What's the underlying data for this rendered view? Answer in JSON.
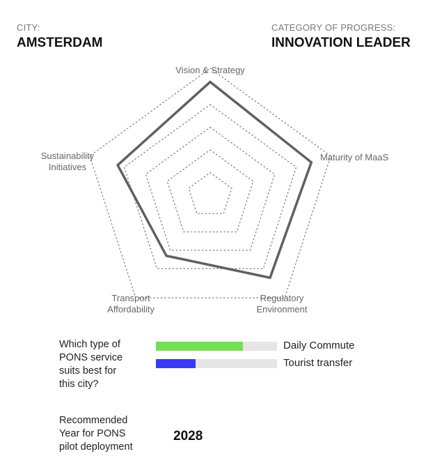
{
  "header": {
    "city_label": "CITY:",
    "city_value": "AMSTERDAM",
    "category_label": "CATEGORY OF PROGRESS:",
    "category_value": "INNOVATION LEADER"
  },
  "chart_data": {
    "type": "radar",
    "axes": [
      "Vision & Strategy",
      "Maturity of MaaS",
      "Regulatory Environment",
      "Transport Affordability",
      "Sustainability Initiatives"
    ],
    "axis_label_lines": [
      [
        "Vision & Strategy"
      ],
      [
        "Maturity of MaaS"
      ],
      [
        "Regulatory",
        "Environment"
      ],
      [
        "Transport",
        "Affordability"
      ],
      [
        "Sustainability",
        "Initiatives"
      ]
    ],
    "values": [
      5,
      4.7,
      4.5,
      3.3,
      4.3
    ],
    "scale_max": 5.6,
    "grid_levels": [
      1,
      2,
      3,
      4,
      5.6
    ],
    "series_color": "#606060",
    "grid_color": "#888888"
  },
  "service_fit": {
    "question": [
      "Which type of",
      "PONS service",
      "suits best for",
      "this city?"
    ],
    "bars": [
      {
        "label": "Daily Commute",
        "value": 0.72,
        "color": "#76dd55"
      },
      {
        "label": "Tourist transfer",
        "value": 0.33,
        "color": "#3a3af5"
      }
    ]
  },
  "deployment": {
    "question": [
      "Recommended",
      "Year for PONS",
      "pilot deployment"
    ],
    "year": "2028"
  }
}
